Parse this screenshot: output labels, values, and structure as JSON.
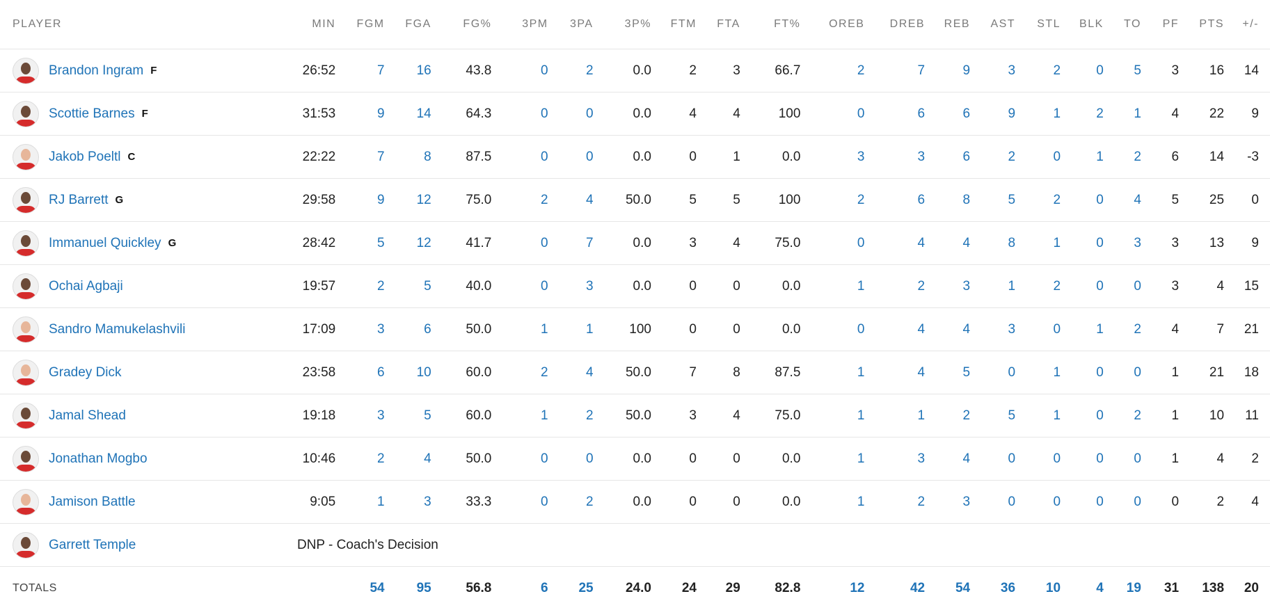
{
  "columns": [
    "PLAYER",
    "MIN",
    "FGM",
    "FGA",
    "FG%",
    "3PM",
    "3PA",
    "3P%",
    "FTM",
    "FTA",
    "FT%",
    "OREB",
    "DREB",
    "REB",
    "AST",
    "STL",
    "BLK",
    "TO",
    "PF",
    "PTS",
    "+/-"
  ],
  "colors": {
    "link": "#1f73b7",
    "text": "#222222",
    "header": "#7a7a7a",
    "divider": "#e6e6e6",
    "jersey": "#d52b2b"
  },
  "players": [
    {
      "name": "Brandon Ingram",
      "pos": "F",
      "skin": "dark",
      "stats": [
        "26:52",
        "7",
        "16",
        "43.8",
        "0",
        "2",
        "0.0",
        "2",
        "3",
        "66.7",
        "2",
        "7",
        "9",
        "3",
        "2",
        "0",
        "5",
        "3",
        "16",
        "14"
      ]
    },
    {
      "name": "Scottie Barnes",
      "pos": "F",
      "skin": "dark",
      "stats": [
        "31:53",
        "9",
        "14",
        "64.3",
        "0",
        "0",
        "0.0",
        "4",
        "4",
        "100",
        "0",
        "6",
        "6",
        "9",
        "1",
        "2",
        "1",
        "4",
        "22",
        "9"
      ]
    },
    {
      "name": "Jakob Poeltl",
      "pos": "C",
      "skin": "light",
      "stats": [
        "22:22",
        "7",
        "8",
        "87.5",
        "0",
        "0",
        "0.0",
        "0",
        "1",
        "0.0",
        "3",
        "3",
        "6",
        "2",
        "0",
        "1",
        "2",
        "6",
        "14",
        "-3"
      ]
    },
    {
      "name": "RJ Barrett",
      "pos": "G",
      "skin": "dark",
      "stats": [
        "29:58",
        "9",
        "12",
        "75.0",
        "2",
        "4",
        "50.0",
        "5",
        "5",
        "100",
        "2",
        "6",
        "8",
        "5",
        "2",
        "0",
        "4",
        "5",
        "25",
        "0"
      ]
    },
    {
      "name": "Immanuel Quickley",
      "pos": "G",
      "skin": "dark",
      "stats": [
        "28:42",
        "5",
        "12",
        "41.7",
        "0",
        "7",
        "0.0",
        "3",
        "4",
        "75.0",
        "0",
        "4",
        "4",
        "8",
        "1",
        "0",
        "3",
        "3",
        "13",
        "9"
      ]
    },
    {
      "name": "Ochai Agbaji",
      "pos": "",
      "skin": "dark",
      "stats": [
        "19:57",
        "2",
        "5",
        "40.0",
        "0",
        "3",
        "0.0",
        "0",
        "0",
        "0.0",
        "1",
        "2",
        "3",
        "1",
        "2",
        "0",
        "0",
        "3",
        "4",
        "15"
      ]
    },
    {
      "name": "Sandro Mamukelashvili",
      "pos": "",
      "skin": "light",
      "stats": [
        "17:09",
        "3",
        "6",
        "50.0",
        "1",
        "1",
        "100",
        "0",
        "0",
        "0.0",
        "0",
        "4",
        "4",
        "3",
        "0",
        "1",
        "2",
        "4",
        "7",
        "21"
      ]
    },
    {
      "name": "Gradey Dick",
      "pos": "",
      "skin": "light",
      "stats": [
        "23:58",
        "6",
        "10",
        "60.0",
        "2",
        "4",
        "50.0",
        "7",
        "8",
        "87.5",
        "1",
        "4",
        "5",
        "0",
        "1",
        "0",
        "0",
        "1",
        "21",
        "18"
      ]
    },
    {
      "name": "Jamal Shead",
      "pos": "",
      "skin": "dark",
      "stats": [
        "19:18",
        "3",
        "5",
        "60.0",
        "1",
        "2",
        "50.0",
        "3",
        "4",
        "75.0",
        "1",
        "1",
        "2",
        "5",
        "1",
        "0",
        "2",
        "1",
        "10",
        "11"
      ]
    },
    {
      "name": "Jonathan Mogbo",
      "pos": "",
      "skin": "dark",
      "stats": [
        "10:46",
        "2",
        "4",
        "50.0",
        "0",
        "0",
        "0.0",
        "0",
        "0",
        "0.0",
        "1",
        "3",
        "4",
        "0",
        "0",
        "0",
        "0",
        "1",
        "4",
        "2"
      ]
    },
    {
      "name": "Jamison Battle",
      "pos": "",
      "skin": "light",
      "stats": [
        "9:05",
        "1",
        "3",
        "33.3",
        "0",
        "2",
        "0.0",
        "0",
        "0",
        "0.0",
        "1",
        "2",
        "3",
        "0",
        "0",
        "0",
        "0",
        "0",
        "2",
        "4"
      ]
    }
  ],
  "dnp_player": {
    "name": "Garrett Temple",
    "skin": "dark",
    "note": "DNP - Coach's Decision"
  },
  "totals": {
    "label": "TOTALS",
    "stats": [
      "",
      "54",
      "95",
      "56.8",
      "6",
      "25",
      "24.0",
      "24",
      "29",
      "82.8",
      "12",
      "42",
      "54",
      "36",
      "10",
      "4",
      "19",
      "31",
      "138",
      "20"
    ]
  },
  "link_columns": [
    "FGM",
    "FGA",
    "3PM",
    "3PA",
    "OREB",
    "DREB",
    "REB",
    "AST",
    "STL",
    "BLK",
    "TO"
  ]
}
